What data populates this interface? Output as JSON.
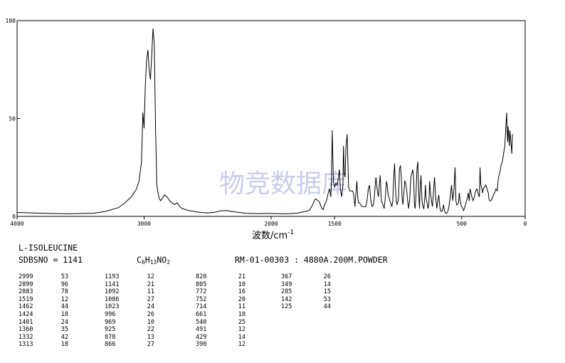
{
  "chart_data": {
    "type": "line",
    "title": "",
    "xlabel": "波数/cm",
    "xlabel_sup": "-1",
    "ylabel": "",
    "xlim": [
      4000,
      0
    ],
    "ylim": [
      0,
      100
    ],
    "x_ticks": [
      4000,
      3000,
      2000,
      1500,
      500,
      0
    ],
    "y_ticks": [
      0,
      50,
      100
    ],
    "x_tick_labels": [
      "4000",
      "3000",
      "2000",
      "1500",
      "500",
      "0"
    ],
    "y_tick_labels": [
      "0",
      "50",
      "100"
    ],
    "grid": false,
    "series": [
      {
        "color": "#000000",
        "x": [
          4000,
          3800,
          3600,
          3400,
          3300,
          3200,
          3150,
          3100,
          3060,
          3040,
          3020,
          3010,
          3000,
          2990,
          2980,
          2970,
          2960,
          2950,
          2940,
          2930,
          2920,
          2910,
          2900,
          2890,
          2880,
          2870,
          2860,
          2840,
          2820,
          2800,
          2780,
          2760,
          2740,
          2720,
          2700,
          2650,
          2600,
          2550,
          2500,
          2450,
          2400,
          2350,
          2300,
          2250,
          2200,
          2150,
          2100,
          2050,
          2000,
          1950,
          1900,
          1850,
          1800,
          1750,
          1700,
          1680,
          1660,
          1650,
          1640,
          1630,
          1620,
          1610,
          1600,
          1590,
          1580,
          1570,
          1560,
          1550,
          1540,
          1530,
          1525,
          1519,
          1510,
          1500,
          1490,
          1480,
          1470,
          1462,
          1455,
          1445,
          1435,
          1430,
          1424,
          1418,
          1410,
          1401,
          1395,
          1390,
          1380,
          1370,
          1360,
          1352,
          1345,
          1340,
          1332,
          1325,
          1318,
          1313,
          1305,
          1295,
          1285,
          1270,
          1255,
          1245,
          1235,
          1225,
          1215,
          1205,
          1193,
          1185,
          1175,
          1165,
          1155,
          1148,
          1141,
          1132,
          1120,
          1110,
          1100,
          1092,
          1086,
          1080,
          1070,
          1060,
          1050,
          1042,
          1035,
          1028,
          1023,
          1015,
          1008,
          1000,
          996,
          990,
          982,
          975,
          969,
          962,
          955,
          948,
          940,
          932,
          925,
          918,
          910,
          900,
          892,
          885,
          878,
          872,
          866,
          860,
          852,
          845,
          838,
          832,
          828,
          820,
          812,
          805,
          798,
          790,
          785,
          780,
          772,
          765,
          758,
          752,
          745,
          738,
          730,
          722,
          714,
          705,
          695,
          690,
          680,
          672,
          665,
          661,
          655,
          648,
          642,
          636,
          630,
          622,
          614,
          606,
          598,
          590,
          580,
          570,
          560,
          552,
          545,
          540,
          532,
          525,
          518,
          510,
          500,
          491,
          485,
          478,
          470,
          462,
          455,
          448,
          440,
          435,
          429,
          420,
          410,
          400,
          390,
          380,
          367,
          360,
          355,
          349,
          340,
          335,
          330,
          320,
          310,
          300,
          290,
          285,
          280,
          270,
          260,
          250,
          240,
          230,
          220,
          210,
          200,
          190,
          180,
          170,
          160,
          150,
          145,
          142,
          138,
          134,
          130,
          125,
          120,
          115,
          110,
          105,
          100
        ],
        "values": [
          2,
          1.6,
          1.3,
          1.6,
          2.6,
          4.5,
          7,
          10,
          14,
          18,
          28,
          53,
          45,
          68,
          80,
          85,
          75,
          70,
          82,
          96,
          88,
          45,
          16,
          12,
          9,
          8,
          9,
          11,
          10,
          8,
          7,
          6,
          7,
          5,
          4,
          3,
          2.4,
          2,
          1.8,
          2,
          2.8,
          3,
          2.4,
          2,
          1.6,
          1.5,
          1.4,
          1.5,
          1.5,
          1.4,
          1.3,
          1.4,
          1.6,
          2.2,
          3,
          5,
          8,
          9,
          8.5,
          8,
          7.5,
          5.5,
          4,
          3.5,
          6,
          7,
          9,
          12,
          14,
          10,
          18,
          44,
          18,
          15,
          17,
          16,
          20,
          24,
          14,
          10,
          16,
          36,
          22,
          20,
          36,
          42,
          26,
          15,
          13,
          13,
          13,
          12,
          8,
          5,
          12,
          18,
          10,
          7,
          7,
          6,
          5,
          5,
          5,
          8,
          14,
          16,
          8,
          5,
          6,
          12,
          20,
          14,
          10,
          16,
          21,
          8,
          6,
          4,
          10,
          18,
          16,
          12,
          9,
          7,
          5,
          8,
          20,
          27,
          18,
          8,
          6,
          8,
          10,
          24,
          26,
          20,
          10,
          6,
          12,
          18,
          17,
          13,
          8,
          4,
          8,
          20,
          22,
          24,
          20,
          7,
          4,
          10,
          24,
          28,
          12,
          4,
          12,
          21,
          8,
          5,
          4,
          10,
          16,
          9,
          7,
          4,
          6,
          18,
          12,
          8,
          5,
          12,
          20,
          10,
          4,
          7,
          11,
          5,
          3,
          2.5,
          2.5,
          4,
          6,
          3,
          2,
          1.5,
          2,
          3,
          6,
          10,
          16,
          8,
          14,
          25,
          8,
          6,
          6,
          7,
          12,
          7,
          5,
          4,
          3,
          4,
          6,
          8,
          9,
          12,
          8,
          14,
          13,
          10,
          8,
          10,
          13,
          14,
          11,
          10,
          25,
          16,
          14,
          12,
          14,
          15,
          16,
          14,
          12,
          9,
          8,
          8,
          9,
          11,
          12,
          14,
          13,
          20,
          22,
          26,
          28,
          32,
          36,
          48,
          53,
          44,
          38,
          46,
          42,
          36,
          44,
          40,
          36,
          32,
          42
        ]
      }
    ]
  },
  "watermark": "物竞数据库",
  "compound_name": "L-ISOLEUCINE",
  "sdbs_no": "SDBSNO = 1141",
  "formula": [
    {
      "text": "C",
      "sub": "6"
    },
    {
      "text": "H",
      "sub": "13"
    },
    {
      "text": "NO",
      "sub": "2"
    }
  ],
  "method": "RM-01-00303 : 4880A.200M.POWDER",
  "peak_table": [
    [
      [
        "2999",
        "53"
      ],
      [
        "2899",
        "96"
      ],
      [
        "2883",
        "78"
      ],
      [
        "1519",
        "12"
      ],
      [
        "1462",
        "44"
      ],
      [
        "1424",
        "18"
      ],
      [
        "1401",
        "24"
      ],
      [
        "1360",
        "35"
      ],
      [
        "1332",
        "42"
      ],
      [
        "1313",
        "18"
      ]
    ],
    [
      [
        "1193",
        "12"
      ],
      [
        "1141",
        "21"
      ],
      [
        "1092",
        "11"
      ],
      [
        "1086",
        "27"
      ],
      [
        "1023",
        "24"
      ],
      [
        "996",
        "26"
      ],
      [
        "969",
        "10"
      ],
      [
        "925",
        "22"
      ],
      [
        "878",
        "13"
      ],
      [
        "866",
        "27"
      ]
    ],
    [
      [
        "828",
        "21"
      ],
      [
        "805",
        "10"
      ],
      [
        "772",
        "16"
      ],
      [
        "752",
        "20"
      ],
      [
        "714",
        "11"
      ],
      [
        "661",
        "18"
      ],
      [
        "540",
        "25"
      ],
      [
        "491",
        "12"
      ],
      [
        "429",
        "14"
      ],
      [
        "390",
        "12"
      ]
    ],
    [
      [
        "367",
        "26"
      ],
      [
        "349",
        "14"
      ],
      [
        "285",
        "15"
      ],
      [
        "142",
        "53"
      ],
      [
        "125",
        "44"
      ]
    ]
  ]
}
